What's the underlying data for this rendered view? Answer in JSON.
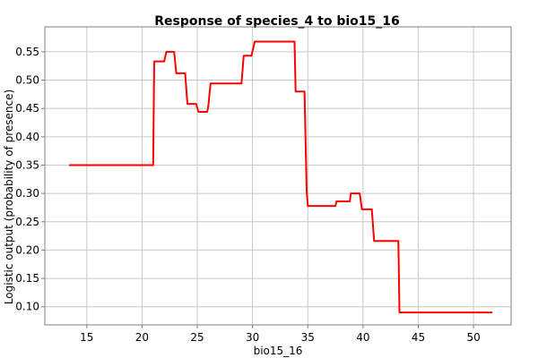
{
  "chart_data": {
    "type": "line",
    "title": "Response of species_4 to bio15_16",
    "xlabel": "bio15_16",
    "ylabel": "Logistic output (probability of presence)",
    "xlim": [
      11.2,
      53.4
    ],
    "ylim": [
      0.068,
      0.594
    ],
    "grid": true,
    "x_ticks": [
      15,
      20,
      25,
      30,
      35,
      40,
      45,
      50
    ],
    "y_ticks": [
      0.1,
      0.15,
      0.2,
      0.25,
      0.3,
      0.35,
      0.4,
      0.45,
      0.5,
      0.55
    ],
    "x_tick_labels": [
      "15",
      "20",
      "25",
      "30",
      "35",
      "40",
      "45",
      "50"
    ],
    "y_tick_labels": [
      "0.10",
      "0.15",
      "0.20",
      "0.25",
      "0.30",
      "0.35",
      "0.40",
      "0.45",
      "0.50",
      "0.55"
    ],
    "series": [
      {
        "color": "#ff0000",
        "points": [
          [
            13.4,
            0.35
          ],
          [
            21.0,
            0.35
          ],
          [
            21.1,
            0.533
          ],
          [
            22.0,
            0.533
          ],
          [
            22.2,
            0.55
          ],
          [
            22.9,
            0.55
          ],
          [
            23.1,
            0.512
          ],
          [
            23.9,
            0.512
          ],
          [
            24.1,
            0.458
          ],
          [
            24.9,
            0.458
          ],
          [
            25.1,
            0.444
          ],
          [
            25.9,
            0.444
          ],
          [
            26.0,
            0.455
          ],
          [
            26.2,
            0.494
          ],
          [
            29.0,
            0.494
          ],
          [
            29.2,
            0.543
          ],
          [
            29.9,
            0.543
          ],
          [
            30.2,
            0.568
          ],
          [
            33.8,
            0.568
          ],
          [
            33.9,
            0.48
          ],
          [
            34.7,
            0.48
          ],
          [
            34.9,
            0.305
          ],
          [
            35.0,
            0.278
          ],
          [
            37.5,
            0.278
          ],
          [
            37.6,
            0.286
          ],
          [
            38.8,
            0.286
          ],
          [
            38.9,
            0.3
          ],
          [
            39.7,
            0.3
          ],
          [
            39.9,
            0.272
          ],
          [
            40.8,
            0.272
          ],
          [
            41.0,
            0.216
          ],
          [
            43.2,
            0.216
          ],
          [
            43.3,
            0.09
          ],
          [
            51.7,
            0.09
          ]
        ]
      }
    ]
  }
}
